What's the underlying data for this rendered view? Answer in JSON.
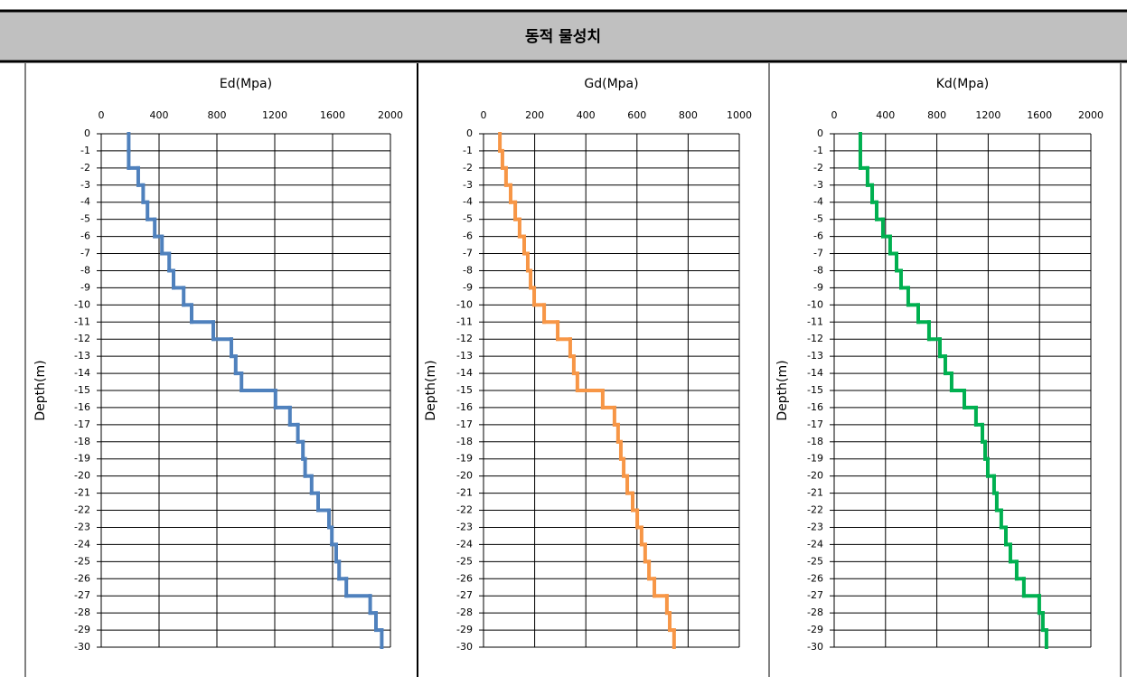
{
  "header": {
    "title": "동적 물성치"
  },
  "chart_data": [
    {
      "type": "step",
      "title": "Ed(Mpa)",
      "y_label": "Depth(m)",
      "color": "#4f81bd",
      "grid": true,
      "xlim": [
        0,
        2000
      ],
      "xticks": [
        0,
        400,
        800,
        1200,
        1600,
        2000
      ],
      "ylim": [
        -30,
        0
      ],
      "yticks": [
        0,
        -1,
        -2,
        -3,
        -4,
        -5,
        -6,
        -7,
        -8,
        -9,
        -10,
        -11,
        -12,
        -13,
        -14,
        -15,
        -16,
        -17,
        -18,
        -19,
        -20,
        -21,
        -22,
        -23,
        -24,
        -25,
        -26,
        -27,
        -28,
        -29,
        -30
      ],
      "depth_edges": [
        0,
        -1,
        -2,
        -3,
        -4,
        -5,
        -6,
        -7,
        -8,
        -9,
        -10,
        -11,
        -12,
        -13,
        -14,
        -15,
        -16,
        -17,
        -18,
        -19,
        -20,
        -21,
        -22,
        -23,
        -24,
        -25,
        -26,
        -27,
        -28,
        -29,
        -30
      ],
      "values": [
        190,
        190,
        256,
        290,
        320,
        370,
        420,
        470,
        500,
        570,
        625,
        775,
        900,
        930,
        970,
        1205,
        1305,
        1360,
        1395,
        1410,
        1455,
        1500,
        1575,
        1595,
        1625,
        1645,
        1695,
        1860,
        1900,
        1940
      ]
    },
    {
      "type": "step",
      "title": "Gd(Mpa)",
      "y_label": "Depth(m)",
      "color": "#f79646",
      "grid": true,
      "xlim": [
        0,
        1000
      ],
      "xticks": [
        0,
        200,
        400,
        600,
        800,
        1000
      ],
      "ylim": [
        -30,
        0
      ],
      "yticks": [
        0,
        -1,
        -2,
        -3,
        -4,
        -5,
        -6,
        -7,
        -8,
        -9,
        -10,
        -11,
        -12,
        -13,
        -14,
        -15,
        -16,
        -17,
        -18,
        -19,
        -20,
        -21,
        -22,
        -23,
        -24,
        -25,
        -26,
        -27,
        -28,
        -29,
        -30
      ],
      "depth_edges": [
        0,
        -1,
        -2,
        -3,
        -4,
        -5,
        -6,
        -7,
        -8,
        -9,
        -10,
        -11,
        -12,
        -13,
        -14,
        -15,
        -16,
        -17,
        -18,
        -19,
        -20,
        -21,
        -22,
        -23,
        -24,
        -25,
        -26,
        -27,
        -28,
        -29,
        -30
      ],
      "values": [
        64,
        74,
        88,
        106,
        124,
        141,
        159,
        173,
        184,
        198,
        237,
        290,
        339,
        353,
        367,
        466,
        512,
        526,
        537,
        548,
        562,
        583,
        601,
        618,
        632,
        647,
        668,
        717,
        728,
        745
      ]
    },
    {
      "type": "step",
      "title": "Kd(Mpa)",
      "y_label": "Depth(m)",
      "color": "#00b050",
      "grid": true,
      "xlim": [
        0,
        2000
      ],
      "xticks": [
        0,
        400,
        800,
        1200,
        1600,
        2000
      ],
      "ylim": [
        -30,
        0
      ],
      "yticks": [
        0,
        -1,
        -2,
        -3,
        -4,
        -5,
        -6,
        -7,
        -8,
        -9,
        -10,
        -11,
        -12,
        -13,
        -14,
        -15,
        -16,
        -17,
        -18,
        -19,
        -20,
        -21,
        -22,
        -23,
        -24,
        -25,
        -26,
        -27,
        -28,
        -29,
        -30
      ],
      "depth_edges": [
        0,
        -1,
        -2,
        -3,
        -4,
        -5,
        -6,
        -7,
        -8,
        -9,
        -10,
        -11,
        -12,
        -13,
        -14,
        -15,
        -16,
        -17,
        -18,
        -19,
        -20,
        -21,
        -22,
        -23,
        -24,
        -25,
        -26,
        -27,
        -28,
        -29,
        -30
      ],
      "values": [
        204,
        204,
        260,
        296,
        331,
        380,
        436,
        486,
        521,
        577,
        655,
        739,
        824,
        866,
        915,
        1014,
        1105,
        1155,
        1176,
        1197,
        1246,
        1267,
        1302,
        1338,
        1373,
        1422,
        1478,
        1598,
        1626,
        1654
      ]
    }
  ]
}
